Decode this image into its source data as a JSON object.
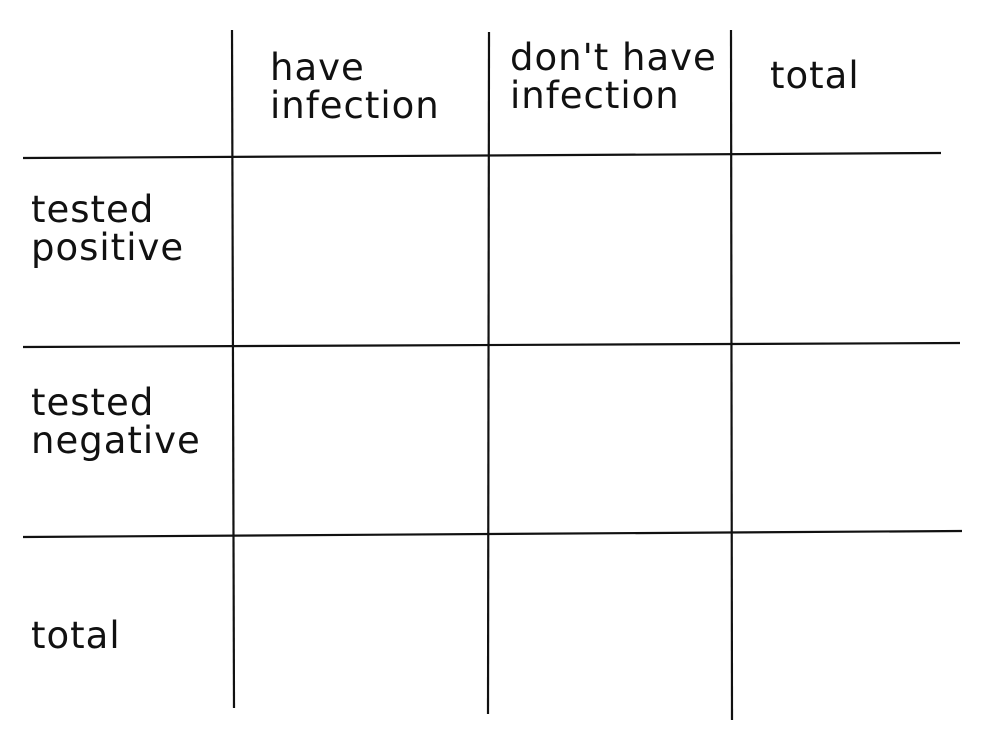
{
  "table": {
    "columns": [
      {
        "lines": [
          "have",
          "infection"
        ]
      },
      {
        "lines": [
          "don't have",
          "infection"
        ]
      },
      {
        "lines": [
          "total"
        ]
      }
    ],
    "rows": [
      {
        "lines": [
          "tested",
          "positive"
        ]
      },
      {
        "lines": [
          "tested",
          "negative"
        ]
      },
      {
        "lines": [
          "total"
        ]
      }
    ]
  }
}
